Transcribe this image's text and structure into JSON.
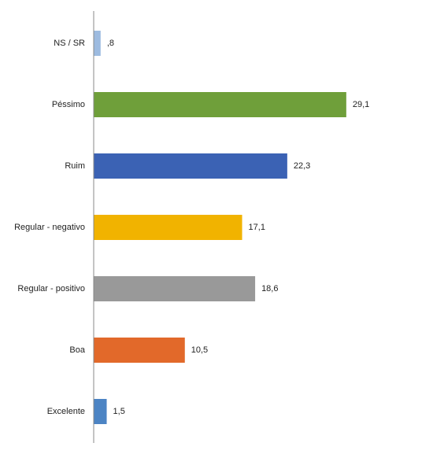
{
  "chart_data": {
    "type": "hbar",
    "categories": [
      "NS / SR",
      "Péssimo",
      "Ruim",
      "Regular - negativo",
      "Regular - positivo",
      "Boa",
      "Excelente"
    ],
    "values": [
      0.8,
      29.1,
      22.3,
      17.1,
      18.6,
      10.5,
      1.5
    ],
    "value_labels": [
      ",8",
      "29,1",
      "22,3",
      "17,1",
      "18,6",
      "10,5",
      "1,5"
    ],
    "colors": [
      "#9dbbe0",
      "#6f9f3a",
      "#3b62b4",
      "#f1b300",
      "#999999",
      "#e2692a",
      "#4c84c4"
    ],
    "xlim": [
      0,
      39
    ]
  }
}
